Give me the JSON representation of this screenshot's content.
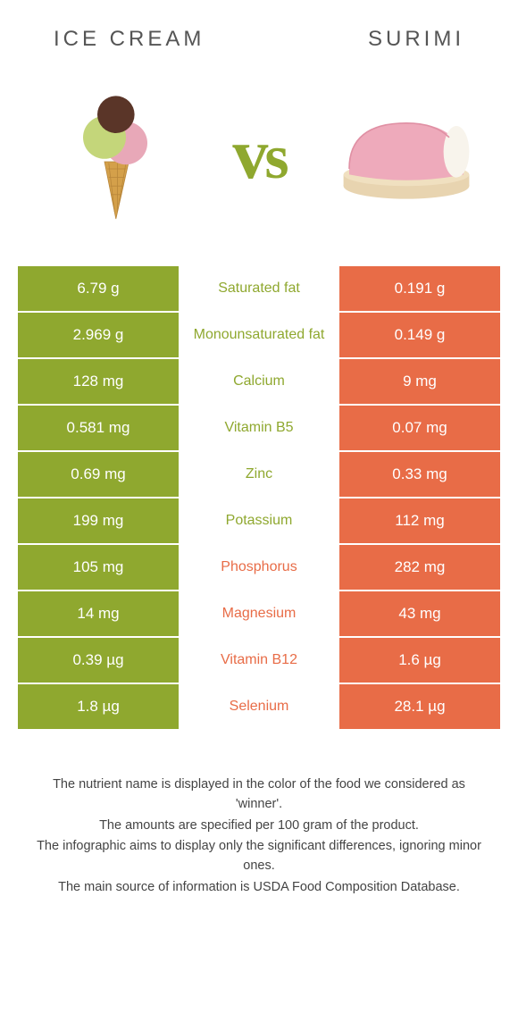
{
  "header": {
    "left_title": "Ice cream",
    "right_title": "Surimi"
  },
  "vs_label": "vs",
  "colors": {
    "left_bg": "#8fa82f",
    "right_bg": "#e86c47",
    "left_text": "#8fa82f",
    "right_text": "#e86c47",
    "page_bg": "#ffffff"
  },
  "table": {
    "rows": [
      {
        "left": "6.79 g",
        "label": "Saturated fat",
        "right": "0.191 g",
        "winner": "left"
      },
      {
        "left": "2.969 g",
        "label": "Monounsaturated fat",
        "right": "0.149 g",
        "winner": "left"
      },
      {
        "left": "128 mg",
        "label": "Calcium",
        "right": "9 mg",
        "winner": "left"
      },
      {
        "left": "0.581 mg",
        "label": "Vitamin B5",
        "right": "0.07 mg",
        "winner": "left"
      },
      {
        "left": "0.69 mg",
        "label": "Zinc",
        "right": "0.33 mg",
        "winner": "left"
      },
      {
        "left": "199 mg",
        "label": "Potassium",
        "right": "112 mg",
        "winner": "left"
      },
      {
        "left": "105 mg",
        "label": "Phosphorus",
        "right": "282 mg",
        "winner": "right"
      },
      {
        "left": "14 mg",
        "label": "Magnesium",
        "right": "43 mg",
        "winner": "right"
      },
      {
        "left": "0.39 µg",
        "label": "Vitamin B12",
        "right": "1.6 µg",
        "winner": "right"
      },
      {
        "left": "1.8 µg",
        "label": "Selenium",
        "right": "28.1 µg",
        "winner": "right"
      }
    ]
  },
  "footer": {
    "line1": "The nutrient name is displayed in the color of the food we considered as 'winner'.",
    "line2": "The amounts are specified per 100 gram of the product.",
    "line3": "The infographic aims to display only the significant differences, ignoring minor ones.",
    "line4": "The main source of information is USDA Food Composition Database."
  }
}
